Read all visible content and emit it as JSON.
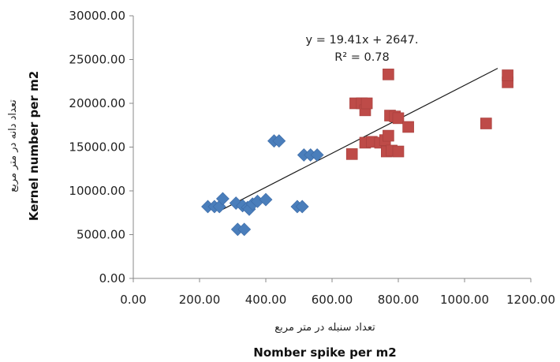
{
  "chart_data": {
    "type": "scatter",
    "title": "",
    "xlabel": "Nomber spike per m2",
    "xlabel_fa": "تعداد سنبله در متر مربع",
    "ylabel": "Kernel number per m2",
    "ylabel_fa": "تعداد دانه در متر مربع",
    "xlim": [
      0,
      1200
    ],
    "ylim": [
      0,
      30000
    ],
    "x_ticks": [
      0,
      200,
      400,
      600,
      800,
      1000,
      1200
    ],
    "y_ticks": [
      0,
      5000,
      10000,
      15000,
      20000,
      25000,
      30000
    ],
    "x_tick_labels": [
      "0.00",
      "200.00",
      "400.00",
      "600.00",
      "800.00",
      "1000.00",
      "1200.00"
    ],
    "y_tick_labels": [
      "0.00",
      "5000.00",
      "10000.00",
      "15000.00",
      "20000.00",
      "25000.00",
      "30000.00"
    ],
    "grid": false,
    "legend": "none",
    "trendline": {
      "equation": "y = 19.41x + 2647.",
      "r_squared": "R² = 0.78",
      "slope": 19.41,
      "intercept": 2647,
      "x_range": [
        270,
        1100
      ]
    },
    "series": [
      {
        "marker": "diamond",
        "color": "#4a7ebb",
        "points": [
          [
            225,
            8200
          ],
          [
            245,
            8200
          ],
          [
            260,
            8200
          ],
          [
            270,
            9100
          ],
          [
            310,
            8600
          ],
          [
            315,
            5600
          ],
          [
            330,
            8300
          ],
          [
            335,
            5600
          ],
          [
            345,
            8100
          ],
          [
            350,
            7900
          ],
          [
            360,
            8500
          ],
          [
            375,
            8800
          ],
          [
            400,
            9000
          ],
          [
            425,
            15700
          ],
          [
            440,
            15700
          ],
          [
            495,
            8200
          ],
          [
            510,
            8200
          ],
          [
            515,
            14100
          ],
          [
            535,
            14100
          ],
          [
            555,
            14100
          ]
        ]
      },
      {
        "marker": "square",
        "color": "#be4b48",
        "points": [
          [
            660,
            14200
          ],
          [
            670,
            20000
          ],
          [
            690,
            20000
          ],
          [
            700,
            19200
          ],
          [
            700,
            15500
          ],
          [
            705,
            20000
          ],
          [
            720,
            15600
          ],
          [
            745,
            15500
          ],
          [
            760,
            15800
          ],
          [
            770,
            16300
          ],
          [
            765,
            14500
          ],
          [
            770,
            23300
          ],
          [
            775,
            18600
          ],
          [
            780,
            14600
          ],
          [
            790,
            18500
          ],
          [
            800,
            14500
          ],
          [
            800,
            18300
          ],
          [
            830,
            17300
          ],
          [
            1065,
            17700
          ],
          [
            1130,
            22400
          ],
          [
            1130,
            23200
          ]
        ]
      }
    ]
  }
}
